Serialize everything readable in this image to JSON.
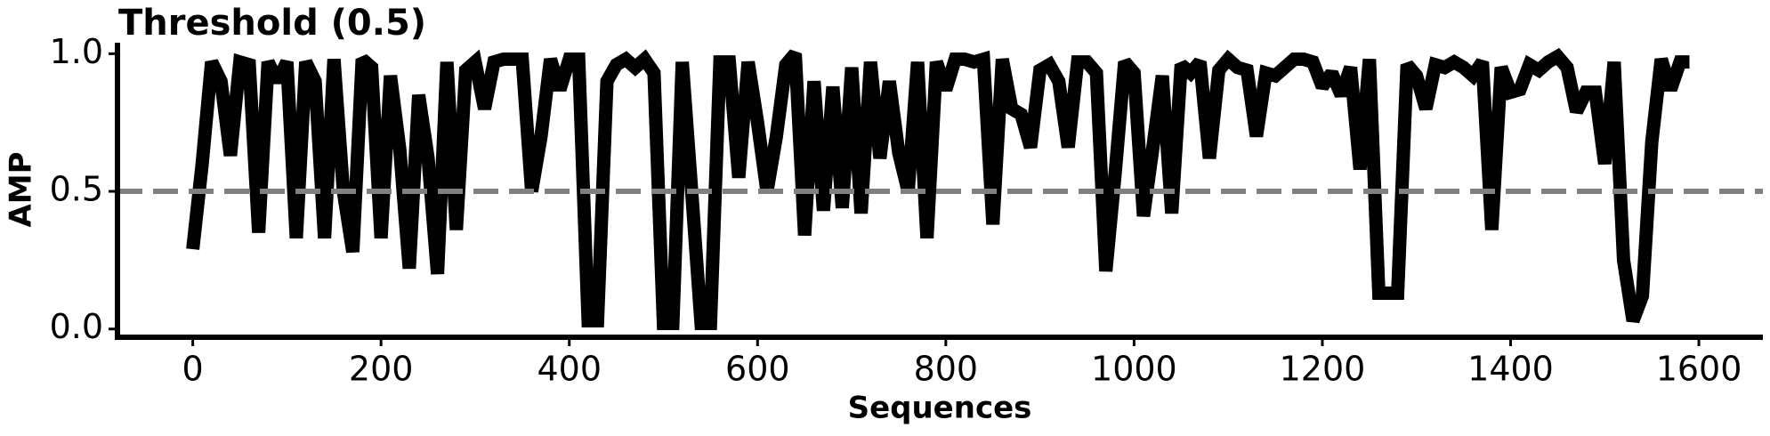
{
  "chart_data": {
    "type": "line",
    "title": "Threshold (0.5)",
    "xlabel": "Sequences",
    "ylabel": "AMP",
    "x": [
      0,
      10,
      20,
      30,
      40,
      50,
      60,
      70,
      80,
      90,
      100,
      110,
      120,
      130,
      140,
      150,
      160,
      170,
      180,
      190,
      200,
      210,
      220,
      230,
      240,
      250,
      260,
      270,
      280,
      290,
      300,
      310,
      320,
      330,
      340,
      350,
      360,
      370,
      380,
      390,
      400,
      410,
      420,
      430,
      440,
      450,
      460,
      470,
      480,
      490,
      500,
      510,
      520,
      530,
      540,
      550,
      560,
      570,
      580,
      590,
      600,
      610,
      620,
      630,
      640,
      650,
      660,
      670,
      680,
      690,
      700,
      710,
      720,
      730,
      740,
      750,
      760,
      770,
      780,
      790,
      800,
      810,
      820,
      830,
      840,
      850,
      860,
      870,
      880,
      890,
      900,
      910,
      920,
      930,
      940,
      950,
      960,
      970,
      980,
      990,
      1000,
      1010,
      1020,
      1030,
      1040,
      1050,
      1060,
      1070,
      1080,
      1090,
      1100,
      1110,
      1120,
      1130,
      1140,
      1150,
      1160,
      1170,
      1180,
      1190,
      1200,
      1210,
      1220,
      1230,
      1240,
      1250,
      1260,
      1270,
      1280,
      1290,
      1300,
      1310,
      1320,
      1330,
      1340,
      1350,
      1360,
      1370,
      1380,
      1390,
      1400,
      1410,
      1420,
      1430,
      1440,
      1450,
      1460,
      1470,
      1480,
      1490,
      1500,
      1510,
      1520,
      1530,
      1540,
      1550,
      1560,
      1570,
      1580,
      1590
    ],
    "values": [
      0.29,
      0.6,
      0.97,
      0.9,
      0.63,
      0.97,
      0.96,
      0.35,
      0.97,
      0.9,
      0.97,
      0.33,
      0.97,
      0.9,
      0.33,
      0.98,
      0.5,
      0.28,
      0.98,
      0.95,
      0.33,
      0.92,
      0.65,
      0.22,
      0.85,
      0.62,
      0.2,
      0.97,
      0.36,
      0.94,
      0.97,
      0.8,
      0.97,
      0.98,
      0.98,
      0.98,
      0.5,
      0.7,
      0.98,
      0.87,
      0.98,
      0.98,
      0.03,
      0.03,
      0.9,
      0.96,
      0.98,
      0.95,
      0.98,
      0.93,
      0.02,
      0.02,
      0.97,
      0.5,
      0.02,
      0.02,
      0.97,
      0.97,
      0.55,
      0.97,
      0.75,
      0.5,
      0.7,
      0.96,
      1.0,
      0.34,
      0.9,
      0.43,
      0.88,
      0.44,
      0.95,
      0.42,
      0.97,
      0.62,
      0.9,
      0.64,
      0.5,
      0.97,
      0.33,
      0.97,
      0.87,
      0.98,
      0.98,
      0.97,
      0.98,
      0.38,
      0.98,
      0.8,
      0.78,
      0.66,
      0.94,
      0.96,
      0.9,
      0.66,
      0.97,
      0.97,
      0.93,
      0.21,
      0.57,
      0.97,
      0.93,
      0.41,
      0.66,
      0.92,
      0.42,
      0.96,
      0.93,
      0.97,
      0.62,
      0.94,
      0.98,
      0.95,
      0.94,
      0.7,
      0.93,
      0.92,
      0.95,
      0.98,
      0.98,
      0.97,
      0.88,
      0.93,
      0.85,
      0.95,
      0.58,
      0.98,
      0.13,
      0.13,
      0.13,
      0.96,
      0.92,
      0.8,
      0.96,
      0.95,
      0.97,
      0.95,
      0.92,
      0.97,
      0.36,
      0.95,
      0.86,
      0.87,
      0.96,
      0.94,
      0.97,
      0.99,
      0.95,
      0.79,
      0.86,
      0.86,
      0.6,
      0.97,
      0.25,
      0.03,
      0.12,
      0.68,
      0.98,
      0.87,
      0.97,
      0.97
    ],
    "color": "#000000",
    "threshold": 0.5,
    "threshold_color": "#808080",
    "xlim": [
      -80,
      1668
    ],
    "ylim": [
      -0.03,
      1.04
    ],
    "xticks": [
      0,
      200,
      400,
      600,
      800,
      1000,
      1200,
      1400,
      1600
    ],
    "yticks": [
      {
        "value": 0,
        "label": "0.0"
      },
      0.5,
      {
        "value": 1,
        "label": "1.0"
      }
    ]
  }
}
